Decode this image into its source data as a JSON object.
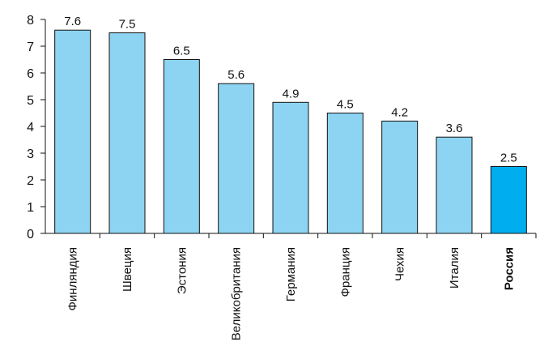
{
  "chart_data": {
    "type": "bar",
    "title": "",
    "xlabel": "",
    "ylabel": "",
    "ylim": [
      0,
      8
    ],
    "yticks": [
      0,
      1,
      2,
      3,
      4,
      5,
      6,
      7,
      8
    ],
    "grid": false,
    "categories": [
      "Финляндия",
      "Швеция",
      "Эстония",
      "Великобритания",
      "Германия",
      "Франция",
      "Чехия",
      "Италия",
      "Россия"
    ],
    "values": [
      7.6,
      7.5,
      6.5,
      5.6,
      4.9,
      4.5,
      4.2,
      3.6,
      2.5
    ],
    "value_labels": [
      "7.6",
      "7.5",
      "6.5",
      "5.6",
      "4.9",
      "4.5",
      "4.2",
      "3.6",
      "2.5"
    ],
    "highlight_category": "Россия",
    "colors": {
      "bar": "#8dd4f2",
      "highlight_bar": "#00aeef",
      "bar_outline": "#111111",
      "axis": "#111111"
    }
  }
}
